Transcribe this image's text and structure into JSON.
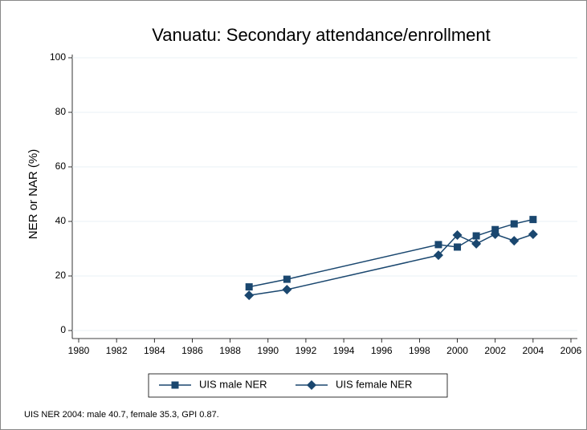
{
  "chart_data": {
    "type": "line",
    "title": "Vanuatu: Secondary attendance/enrollment",
    "y_label": "NER or NAR (%)",
    "note": "UIS NER 2004: male 40.7, female 35.3, GPI 0.87.",
    "x": [
      1989,
      1991,
      1999,
      2000,
      2001,
      2002,
      2003,
      2004
    ],
    "series": [
      {
        "name": "UIS male NER",
        "color": "#1a476f",
        "marker": "square",
        "values": [
          16,
          18.8,
          31.5,
          30.6,
          34.7,
          37,
          39.1,
          40.7
        ]
      },
      {
        "name": "UIS female NER",
        "color": "#1a476f",
        "marker": "diamond",
        "values": [
          12.9,
          15,
          27.6,
          35,
          31.8,
          35.3,
          32.9,
          35.3
        ]
      }
    ],
    "xlim": [
      1980,
      2006
    ],
    "xticks": [
      1980,
      1982,
      1984,
      1986,
      1988,
      1990,
      1992,
      1994,
      1996,
      1998,
      2000,
      2002,
      2004,
      2006
    ],
    "ylim": [
      0,
      100
    ],
    "yticks": [
      0,
      20,
      40,
      60,
      80,
      100
    ],
    "grid": true
  }
}
